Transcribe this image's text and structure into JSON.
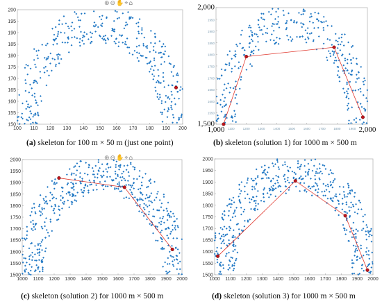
{
  "captions": [
    {
      "letter": "(a)",
      "text": " skeleton for 100 m × 50 m (just one point)"
    },
    {
      "letter": "(b)",
      "text": " skeleton (solution 1) for 1000 m × 500 m"
    },
    {
      "letter": "(c)",
      "text": " skeleton (solution 2) for 1000 m × 500 m"
    },
    {
      "letter": "(d)",
      "text": " skeleton (solution 3) for 1000 m × 500 m"
    }
  ],
  "toolbar_icons": [
    "zoom-in-icon",
    "zoom-out-icon",
    "pan-icon",
    "data-cursor-icon",
    "restore-view-icon"
  ],
  "colors": {
    "points": "#1f77c4",
    "skeleton": "#e0362c",
    "node": "#c0141c"
  },
  "chart_data": [
    {
      "type": "scatter",
      "title": "",
      "xlim": [
        100,
        200
      ],
      "ylim": [
        150,
        200
      ],
      "x_ticks": [
        100,
        110,
        120,
        130,
        140,
        150,
        160,
        170,
        180,
        190,
        200
      ],
      "y_ticks": [
        150,
        155,
        160,
        165,
        170,
        175,
        180,
        185,
        190,
        195,
        200
      ],
      "cloud": {
        "center_x": 150,
        "radius_x": 45,
        "base_y": 150,
        "height": 44,
        "spread": 8,
        "count": 380
      },
      "skeleton_nodes": [
        [
          196,
          166
        ]
      ],
      "grid": false
    },
    {
      "type": "scatter",
      "title": "",
      "xlim": [
        1000,
        2000
      ],
      "ylim": [
        1500,
        2000
      ],
      "x_ticks_major": [
        1000,
        2000
      ],
      "y_ticks_major": [
        1500,
        2000
      ],
      "x_ticks": [
        1100,
        1200,
        1300,
        1400,
        1500,
        1600,
        1700,
        1800,
        1900
      ],
      "y_ticks": [
        1550,
        1600,
        1650,
        1700,
        1750,
        1800,
        1850,
        1900,
        1950
      ],
      "cloud": {
        "center_x": 1500,
        "radius_x": 450,
        "base_y": 1500,
        "height": 440,
        "spread": 80,
        "count": 360
      },
      "skeleton_nodes": [
        [
          1050,
          1500
        ],
        [
          1200,
          1790
        ],
        [
          1780,
          1830
        ],
        [
          1970,
          1530
        ]
      ],
      "grid": false
    },
    {
      "type": "scatter",
      "title": "",
      "xlim": [
        1000,
        2000
      ],
      "ylim": [
        1500,
        2000
      ],
      "x_ticks": [
        1000,
        1100,
        1200,
        1300,
        1400,
        1500,
        1600,
        1700,
        1800,
        1900,
        2000
      ],
      "y_ticks": [
        1500,
        1550,
        1600,
        1650,
        1700,
        1750,
        1800,
        1850,
        1900,
        1950,
        2000
      ],
      "cloud": {
        "center_x": 1500,
        "radius_x": 450,
        "base_y": 1500,
        "height": 440,
        "spread": 80,
        "count": 520
      },
      "skeleton_nodes": [
        [
          1230,
          1920
        ],
        [
          1640,
          1880
        ],
        [
          1940,
          1610
        ]
      ],
      "grid": false
    },
    {
      "type": "scatter",
      "title": "",
      "xlim": [
        1000,
        2000
      ],
      "ylim": [
        1500,
        2000
      ],
      "x_ticks": [
        1000,
        1100,
        1200,
        1300,
        1400,
        1500,
        1600,
        1700,
        1800,
        1900,
        2000
      ],
      "y_ticks": [
        1500,
        1550,
        1600,
        1650,
        1700,
        1750,
        1800,
        1850,
        1900,
        1950,
        2000
      ],
      "cloud": {
        "center_x": 1500,
        "radius_x": 450,
        "base_y": 1500,
        "height": 440,
        "spread": 80,
        "count": 520
      },
      "skeleton_nodes": [
        [
          1020,
          1580
        ],
        [
          1510,
          1905
        ],
        [
          1825,
          1755
        ],
        [
          1965,
          1520
        ]
      ],
      "grid": false
    }
  ]
}
